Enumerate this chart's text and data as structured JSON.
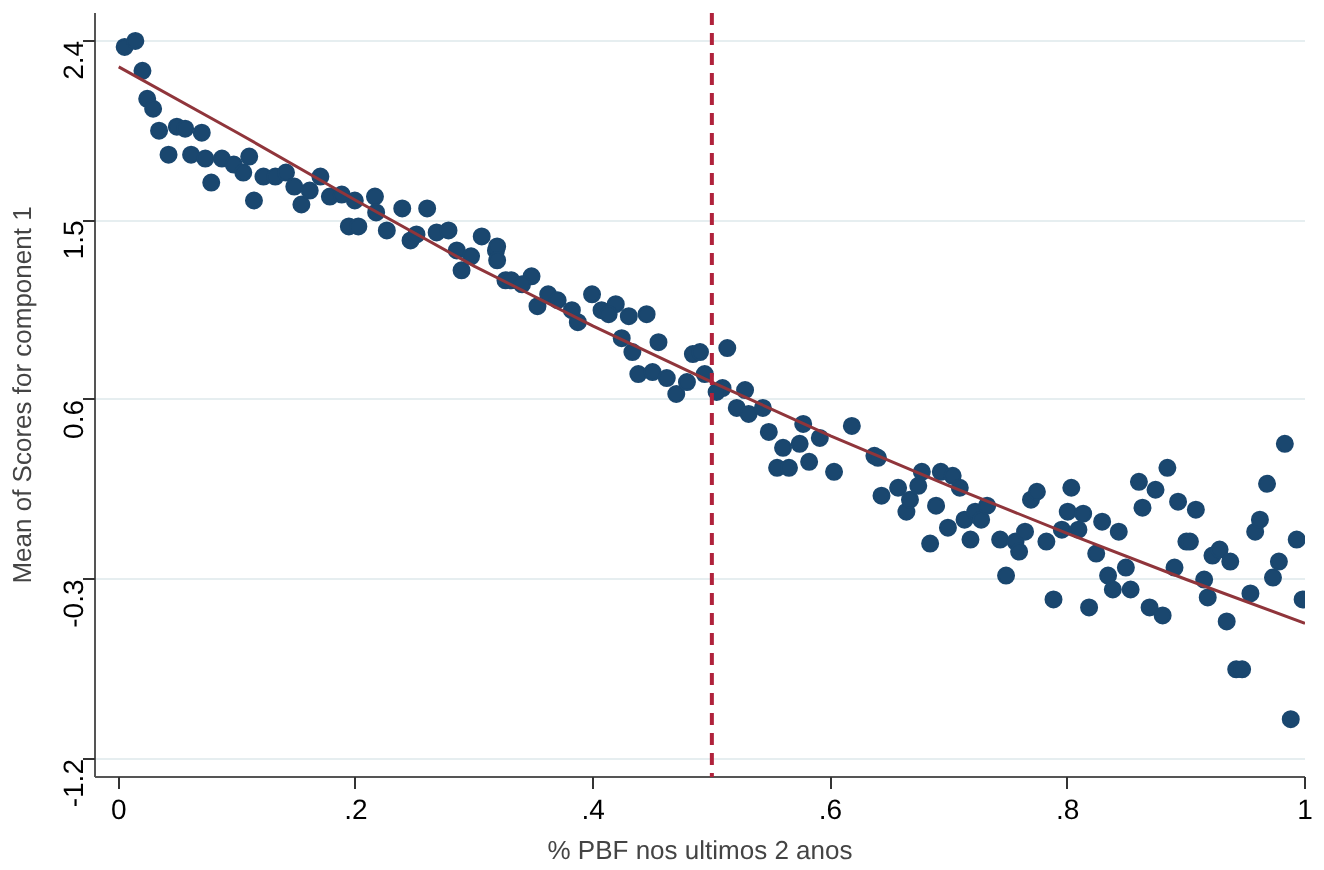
{
  "chart_data": {
    "type": "scatter",
    "xlabel": "% PBF nos ultimos 2 anos",
    "ylabel": "Mean of Scores for component 1",
    "xlim": [
      -0.02,
      1.0
    ],
    "ylim": [
      -1.29,
      2.54
    ],
    "xticks": [
      0,
      {
        "value": 0.2,
        "label": ".2"
      },
      {
        "value": 0.4,
        "label": ".4"
      },
      {
        "value": 0.6,
        "label": ".6"
      },
      {
        "value": 0.8,
        "label": ".8"
      },
      1
    ],
    "yticks": [
      -1.2,
      -0.3,
      0.6,
      1.5,
      2.4
    ],
    "grid": "y",
    "marker": "circle",
    "ref_lines": [
      {
        "axis": "x",
        "value": 0.5,
        "color": "#b0223b",
        "line_style": "dashed"
      }
    ],
    "series": [
      {
        "color": "#1a476f",
        "x": [
          0.005,
          0.014,
          0.02,
          0.024,
          0.029,
          0.034,
          0.042,
          0.049,
          0.056,
          0.061,
          0.07,
          0.078,
          0.073,
          0.087,
          0.097,
          0.105,
          0.11,
          0.114,
          0.122,
          0.132,
          0.141,
          0.148,
          0.154,
          0.161,
          0.17,
          0.178,
          0.188,
          0.194,
          0.202,
          0.199,
          0.216,
          0.217,
          0.226,
          0.239,
          0.246,
          0.26,
          0.251,
          0.268,
          0.278,
          0.285,
          0.289,
          0.297,
          0.306,
          0.318,
          0.326,
          0.319,
          0.319,
          0.331,
          0.348,
          0.34,
          0.353,
          0.362,
          0.37,
          0.382,
          0.387,
          0.399,
          0.407,
          0.419,
          0.413,
          0.43,
          0.445,
          0.424,
          0.433,
          0.455,
          0.438,
          0.45,
          0.462,
          0.47,
          0.479,
          0.484,
          0.49,
          0.494,
          0.513,
          0.509,
          0.504,
          0.528,
          0.521,
          0.531,
          0.543,
          0.548,
          0.56,
          0.577,
          0.574,
          0.591,
          0.618,
          0.555,
          0.565,
          0.582,
          0.603,
          0.637,
          0.64,
          0.643,
          0.657,
          0.664,
          0.667,
          0.677,
          0.674,
          0.684,
          0.689,
          0.693,
          0.699,
          0.703,
          0.709,
          0.713,
          0.718,
          0.722,
          0.727,
          0.732,
          0.743,
          0.748,
          0.756,
          0.759,
          0.764,
          0.769,
          0.774,
          0.782,
          0.788,
          0.795,
          0.8,
          0.803,
          0.809,
          0.813,
          0.818,
          0.824,
          0.829,
          0.834,
          0.838,
          0.843,
          0.849,
          0.853,
          0.86,
          0.863,
          0.869,
          0.874,
          0.88,
          0.884,
          0.89,
          0.893,
          0.9,
          0.903,
          0.908,
          0.915,
          0.918,
          0.922,
          0.928,
          0.934,
          0.937,
          0.942,
          0.947,
          0.954,
          0.958,
          0.962,
          0.968,
          0.973,
          0.978,
          0.983,
          0.988,
          0.993,
          0.998
        ],
        "values": [
          2.37,
          2.4,
          2.25,
          2.11,
          2.06,
          1.95,
          1.83,
          1.97,
          1.96,
          1.83,
          1.94,
          1.69,
          1.81,
          1.81,
          1.78,
          1.74,
          1.82,
          1.6,
          1.72,
          1.72,
          1.74,
          1.67,
          1.58,
          1.65,
          1.72,
          1.62,
          1.63,
          1.47,
          1.47,
          1.6,
          1.62,
          1.54,
          1.45,
          1.56,
          1.4,
          1.56,
          1.43,
          1.44,
          1.45,
          1.35,
          1.25,
          1.32,
          1.42,
          1.35,
          1.2,
          1.37,
          1.3,
          1.2,
          1.22,
          1.18,
          1.07,
          1.13,
          1.1,
          1.05,
          0.99,
          1.13,
          1.05,
          1.08,
          1.03,
          1.02,
          1.03,
          0.91,
          0.84,
          0.89,
          0.73,
          0.74,
          0.71,
          0.63,
          0.69,
          0.83,
          0.84,
          0.73,
          0.86,
          0.66,
          0.64,
          0.65,
          0.56,
          0.53,
          0.56,
          0.44,
          0.36,
          0.48,
          0.38,
          0.41,
          0.47,
          0.26,
          0.26,
          0.29,
          0.24,
          0.32,
          0.31,
          0.12,
          0.16,
          0.04,
          0.1,
          0.24,
          0.17,
          -0.12,
          0.07,
          0.24,
          -0.04,
          0.22,
          0.16,
          0.0,
          -0.1,
          0.04,
          0.0,
          0.07,
          -0.1,
          -0.28,
          -0.11,
          -0.16,
          -0.06,
          0.1,
          0.14,
          -0.11,
          -0.4,
          -0.05,
          0.04,
          0.16,
          -0.05,
          0.03,
          -0.44,
          -0.17,
          -0.01,
          -0.28,
          -0.35,
          -0.06,
          -0.24,
          -0.35,
          0.19,
          0.06,
          -0.44,
          0.15,
          -0.48,
          0.26,
          -0.24,
          0.09,
          -0.11,
          -0.11,
          0.05,
          -0.3,
          -0.39,
          -0.18,
          -0.15,
          -0.51,
          -0.21,
          -0.75,
          -0.75,
          -0.37,
          -0.06,
          0.0,
          0.18,
          -0.29,
          -0.21,
          0.38,
          -1.0,
          -0.1,
          -0.4
        ]
      },
      {
        "type": "line",
        "color": "#90353b",
        "marker": "none",
        "x": [
          0,
          0.1,
          0.2,
          0.3,
          0.4,
          0.5,
          0.6,
          0.7,
          0.8,
          0.9,
          1.0
        ],
        "values": [
          2.27,
          1.94,
          1.6,
          1.27,
          0.97,
          0.69,
          0.42,
          0.17,
          -0.07,
          -0.3,
          -0.52
        ]
      }
    ]
  }
}
